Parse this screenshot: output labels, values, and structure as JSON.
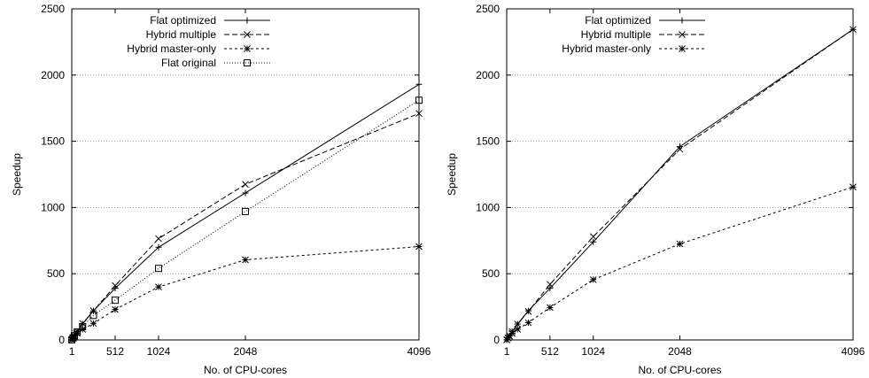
{
  "chart_data": [
    {
      "type": "line",
      "xlabel": "No. of CPU-cores",
      "ylabel": "Speedup",
      "xlim": [
        0,
        4096
      ],
      "ylim": [
        0,
        2500
      ],
      "xticks": [
        1,
        512,
        1024,
        2048,
        4096
      ],
      "yticks": [
        0,
        500,
        1000,
        1500,
        2000,
        2500
      ],
      "grid": "horizontal",
      "legend_position": "top-left",
      "series": [
        {
          "name": "Flat optimized",
          "marker": "plus",
          "dash": "solid",
          "x": [
            1,
            16,
            32,
            64,
            128,
            256,
            512,
            1024,
            2048,
            4096
          ],
          "y": [
            1,
            16,
            32,
            64,
            120,
            220,
            390,
            700,
            1110,
            1930
          ]
        },
        {
          "name": "Hybrid multiple",
          "marker": "cross",
          "dash": "dashed",
          "x": [
            1,
            16,
            32,
            64,
            128,
            256,
            512,
            1024,
            2048,
            4096
          ],
          "y": [
            1,
            16,
            32,
            64,
            125,
            220,
            410,
            765,
            1175,
            1710
          ]
        },
        {
          "name": "Hybrid master-only",
          "marker": "star",
          "dash": "dashdot",
          "x": [
            1,
            16,
            32,
            64,
            128,
            256,
            512,
            1024,
            2048,
            4096
          ],
          "y": [
            1,
            14,
            28,
            50,
            80,
            125,
            230,
            400,
            605,
            705
          ]
        },
        {
          "name": "Flat original",
          "marker": "square",
          "dash": "dotted",
          "x": [
            1,
            16,
            32,
            64,
            128,
            256,
            512,
            1024,
            2048,
            4096
          ],
          "y": [
            1,
            16,
            32,
            60,
            100,
            185,
            300,
            540,
            970,
            1810
          ]
        }
      ]
    },
    {
      "type": "line",
      "xlabel": "No. of CPU-cores",
      "ylabel": "Speedup",
      "xlim": [
        0,
        4096
      ],
      "ylim": [
        0,
        2500
      ],
      "xticks": [
        1,
        512,
        1024,
        2048,
        4096
      ],
      "yticks": [
        0,
        500,
        1000,
        1500,
        2000,
        2500
      ],
      "grid": "horizontal",
      "legend_position": "top-left",
      "series": [
        {
          "name": "Flat optimized",
          "marker": "plus",
          "dash": "solid",
          "x": [
            1,
            16,
            32,
            64,
            128,
            256,
            512,
            1024,
            2048,
            4096
          ],
          "y": [
            1,
            16,
            32,
            64,
            120,
            220,
            390,
            740,
            1460,
            2345
          ]
        },
        {
          "name": "Hybrid multiple",
          "marker": "cross",
          "dash": "dashed",
          "x": [
            1,
            16,
            32,
            64,
            128,
            256,
            512,
            1024,
            2048,
            4096
          ],
          "y": [
            1,
            16,
            32,
            64,
            120,
            215,
            420,
            780,
            1440,
            2345
          ]
        },
        {
          "name": "Hybrid master-only",
          "marker": "star",
          "dash": "dashdot",
          "x": [
            1,
            16,
            32,
            64,
            128,
            256,
            512,
            1024,
            2048,
            4096
          ],
          "y": [
            1,
            14,
            28,
            50,
            80,
            130,
            245,
            455,
            725,
            1155
          ]
        }
      ]
    }
  ]
}
